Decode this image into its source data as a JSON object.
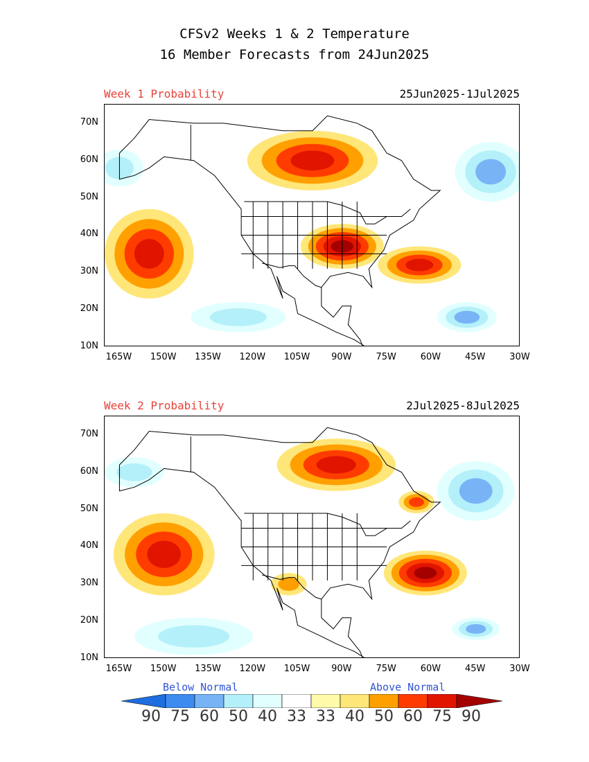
{
  "header": {
    "title_line1": "CFSv2 Weeks 1 & 2 Temperature",
    "title_line2": "16 Member Forecasts from 24Jun2025"
  },
  "panels": [
    {
      "label": "Week 1 Probability",
      "dates": "25Jun2025-1Jul2025",
      "regions": [
        {
          "category": "above",
          "level": 90,
          "lon": 90,
          "lat": 37,
          "rlon": 14,
          "rlat": 6
        },
        {
          "category": "above",
          "level": 75,
          "lon": 100,
          "lat": 60,
          "rlon": 22,
          "rlat": 8
        },
        {
          "category": "above",
          "level": 75,
          "lon": 155,
          "lat": 35,
          "rlon": 15,
          "rlat": 12
        },
        {
          "category": "above",
          "level": 75,
          "lon": 64,
          "lat": 32,
          "rlon": 14,
          "rlat": 5
        },
        {
          "category": "below",
          "level": 60,
          "lon": 40,
          "lat": 57,
          "rlon": 12,
          "rlat": 8
        },
        {
          "category": "below",
          "level": 60,
          "lon": 48,
          "lat": 18,
          "rlon": 10,
          "rlat": 4
        },
        {
          "category": "below",
          "level": 50,
          "lon": 125,
          "lat": 18,
          "rlon": 16,
          "rlat": 4
        },
        {
          "category": "below",
          "level": 50,
          "lon": 165,
          "lat": 58,
          "rlon": 8,
          "rlat": 5
        }
      ]
    },
    {
      "label": "Week 2 Probability",
      "dates": "2Jul2025-8Jul2025",
      "regions": [
        {
          "category": "above",
          "level": 75,
          "lon": 92,
          "lat": 62,
          "rlon": 20,
          "rlat": 7
        },
        {
          "category": "above",
          "level": 75,
          "lon": 150,
          "lat": 38,
          "rlon": 17,
          "rlat": 11
        },
        {
          "category": "above",
          "level": 90,
          "lon": 62,
          "lat": 33,
          "rlon": 14,
          "rlat": 6
        },
        {
          "category": "above",
          "level": 60,
          "lon": 65,
          "lat": 52,
          "rlon": 6,
          "rlat": 3
        },
        {
          "category": "above",
          "level": 50,
          "lon": 108,
          "lat": 30,
          "rlon": 6,
          "rlat": 3
        },
        {
          "category": "below",
          "level": 60,
          "lon": 45,
          "lat": 55,
          "rlon": 13,
          "rlat": 8
        },
        {
          "category": "below",
          "level": 60,
          "lon": 45,
          "lat": 18,
          "rlon": 8,
          "rlat": 3
        },
        {
          "category": "below",
          "level": 50,
          "lon": 140,
          "lat": 16,
          "rlon": 20,
          "rlat": 5
        },
        {
          "category": "below",
          "level": 50,
          "lon": 160,
          "lat": 60,
          "rlon": 10,
          "rlat": 4
        }
      ]
    }
  ],
  "axes": {
    "lat_labels": [
      "70N",
      "60N",
      "50N",
      "40N",
      "30N",
      "20N",
      "10N"
    ],
    "lon_labels": [
      "165W",
      "150W",
      "135W",
      "120W",
      "105W",
      "90W",
      "75W",
      "60W",
      "45W",
      "30W"
    ]
  },
  "legend": {
    "below_label": "Below Normal",
    "above_label": "Above Normal",
    "values": [
      "90",
      "75",
      "60",
      "50",
      "40",
      "33",
      "33",
      "40",
      "50",
      "60",
      "75",
      "90"
    ],
    "colors": [
      "#1e6ee0",
      "#3c8cf0",
      "#78b4f5",
      "#b4f0fa",
      "#e1ffff",
      "#ffffff",
      "#fffaaa",
      "#ffe678",
      "#ffa000",
      "#ff3c00",
      "#e11400",
      "#a50000"
    ]
  }
}
